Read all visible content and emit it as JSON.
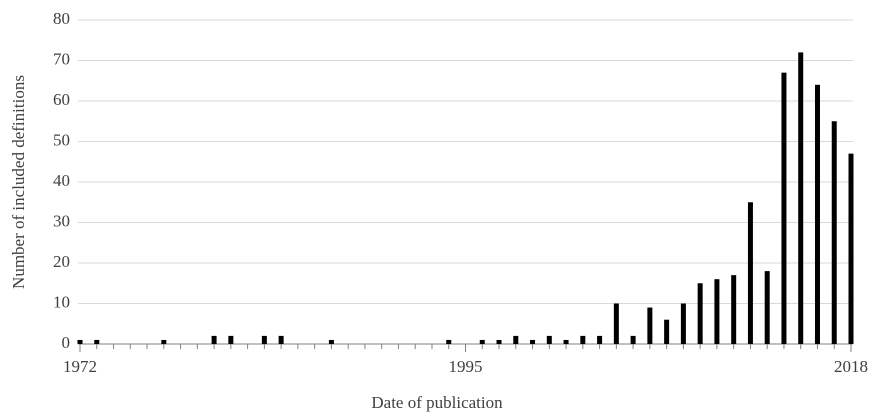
{
  "chart_data": {
    "type": "bar",
    "xlabel": "Date of publication",
    "ylabel": "Number of included definitions",
    "x": [
      1972,
      1973,
      1974,
      1975,
      1976,
      1977,
      1978,
      1979,
      1980,
      1981,
      1982,
      1983,
      1984,
      1985,
      1986,
      1987,
      1988,
      1989,
      1990,
      1991,
      1992,
      1993,
      1994,
      1995,
      1996,
      1997,
      1998,
      1999,
      2000,
      2001,
      2002,
      2003,
      2004,
      2005,
      2006,
      2007,
      2008,
      2009,
      2010,
      2011,
      2012,
      2013,
      2014,
      2015,
      2016,
      2017,
      2018
    ],
    "values": [
      1,
      1,
      0,
      0,
      0,
      1,
      0,
      0,
      2,
      2,
      0,
      2,
      2,
      0,
      0,
      1,
      0,
      0,
      0,
      0,
      0,
      0,
      1,
      0,
      1,
      1,
      2,
      1,
      2,
      1,
      2,
      2,
      10,
      2,
      9,
      6,
      10,
      15,
      16,
      17,
      35,
      18,
      67,
      72,
      64,
      55,
      47
    ],
    "color": "#000000",
    "xlim": [
      1972,
      2018
    ],
    "xticks": [
      1972,
      1995,
      2018
    ],
    "ylim": [
      0,
      80
    ],
    "yticks": [
      0,
      10,
      20,
      30,
      40,
      50,
      60,
      70,
      80
    ],
    "grid": true
  }
}
